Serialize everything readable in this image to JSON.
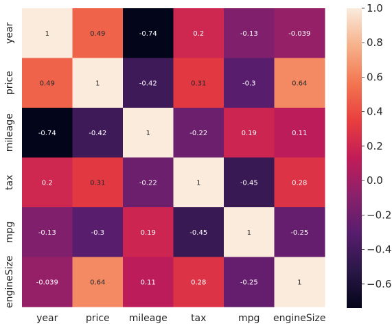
{
  "chart_data": {
    "type": "heatmap",
    "title": "",
    "xlabel": "",
    "ylabel": "",
    "x_categories": [
      "year",
      "price",
      "mileage",
      "tax",
      "mpg",
      "engineSize"
    ],
    "y_categories": [
      "year",
      "price",
      "mileage",
      "tax",
      "mpg",
      "engineSize"
    ],
    "values": [
      [
        1,
        0.49,
        -0.74,
        0.2,
        -0.13,
        -0.039
      ],
      [
        0.49,
        1,
        -0.42,
        0.31,
        -0.3,
        0.64
      ],
      [
        -0.74,
        -0.42,
        1,
        -0.22,
        0.19,
        0.11
      ],
      [
        0.2,
        0.31,
        -0.22,
        1,
        -0.45,
        0.28
      ],
      [
        -0.13,
        -0.3,
        0.19,
        -0.45,
        1,
        -0.25
      ],
      [
        -0.039,
        0.64,
        0.11,
        0.28,
        -0.25,
        1
      ]
    ],
    "value_labels": [
      [
        "1",
        "0.49",
        "-0.74",
        "0.2",
        "-0.13",
        "-0.039"
      ],
      [
        "0.49",
        "1",
        "-0.42",
        "0.31",
        "-0.3",
        "0.64"
      ],
      [
        "-0.74",
        "-0.42",
        "1",
        "-0.22",
        "0.19",
        "0.11"
      ],
      [
        "0.2",
        "0.31",
        "-0.22",
        "1",
        "-0.45",
        "0.28"
      ],
      [
        "-0.13",
        "-0.3",
        "0.19",
        "-0.45",
        "1",
        "-0.25"
      ],
      [
        "-0.039",
        "0.64",
        "0.11",
        "0.28",
        "-0.25",
        "1"
      ]
    ],
    "colorbar": {
      "colormap": "rocket",
      "range": [
        -0.74,
        1
      ],
      "ticks": [
        1.0,
        0.8,
        0.6,
        0.4,
        0.2,
        0.0,
        -0.2,
        -0.4,
        -0.6
      ],
      "tick_labels": [
        "1.0",
        "0.8",
        "0.6",
        "0.4",
        "0.2",
        "0.0",
        "−0.2",
        "−0.4",
        "−0.6"
      ],
      "placement": "right"
    },
    "grid": false
  }
}
